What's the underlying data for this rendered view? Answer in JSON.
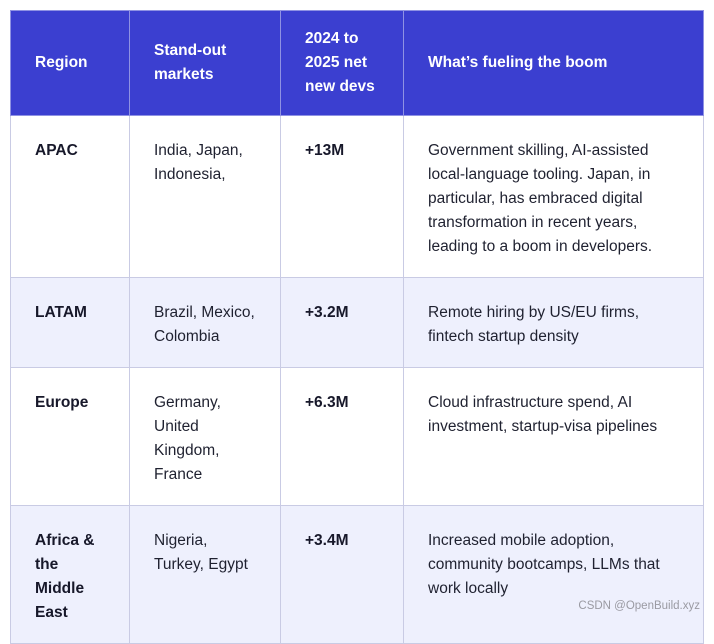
{
  "table": {
    "headers": [
      "Region",
      "Stand-out markets",
      "2024 to 2025 net new devs",
      "What’s fueling the boom"
    ],
    "rows": [
      {
        "region": "APAC",
        "markets": "India, Japan, Indonesia,",
        "net_new_devs": "+13M",
        "drivers": "Government skilling, AI-assisted local-language tooling. Japan, in particular, has embraced digital transformation in recent years, leading to a boom in developers."
      },
      {
        "region": "LATAM",
        "markets": "Brazil, Mexico, Colombia",
        "net_new_devs": "+3.2M",
        "drivers": "Remote hiring by US/EU firms, fintech startup density"
      },
      {
        "region": "Europe",
        "markets": "Germany, United Kingdom, France",
        "net_new_devs": "+6.3M",
        "drivers": "Cloud infrastructure spend, AI investment, startup-visa pipelines"
      },
      {
        "region": "Africa & the Middle East",
        "markets": "Nigeria, Turkey, Egypt",
        "net_new_devs": "+3.4M",
        "drivers": "Increased mobile adoption, community bootcamps, LLMs that work locally"
      }
    ]
  },
  "colors": {
    "header_bg": "#3b3fd0",
    "header_text": "#ffffff",
    "row_alt_bg": "#eef0fd",
    "border": "#c9cbe4"
  },
  "watermark": "CSDN @OpenBuild.xyz"
}
